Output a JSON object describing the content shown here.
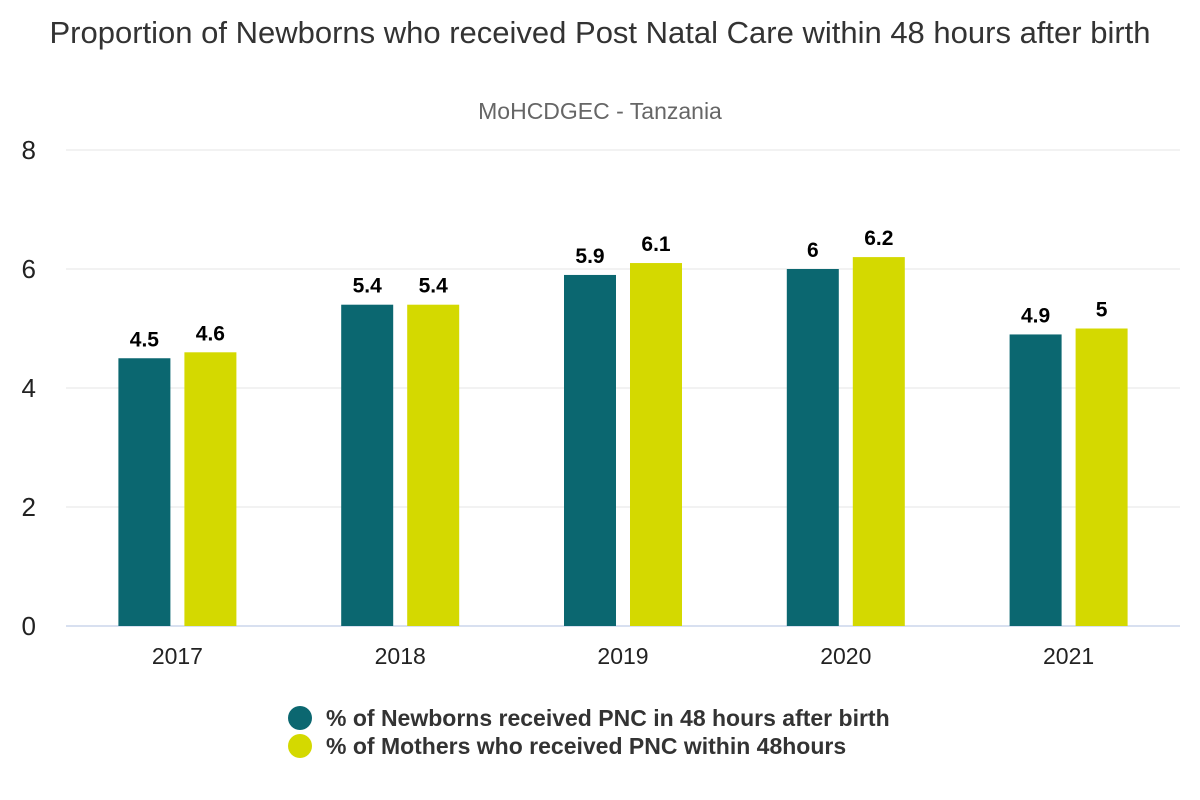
{
  "chart_data": {
    "type": "bar",
    "title": "Proportion of Newborns who received Post Natal Care within 48 hours after birth",
    "subtitle": "MoHCDGEC - Tanzania",
    "xlabel": "",
    "ylabel": "",
    "categories": [
      "2017",
      "2018",
      "2019",
      "2020",
      "2021"
    ],
    "ylim": [
      0,
      8
    ],
    "yticks": [
      0,
      2,
      4,
      6,
      8
    ],
    "grid": true,
    "legend_position": "bottom",
    "series": [
      {
        "name": "% of Newborns received PNC in 48 hours after birth",
        "color": "#0b6770",
        "values": [
          4.5,
          5.4,
          5.9,
          6,
          4.9
        ]
      },
      {
        "name": "% of Mothers who received PNC within 48hours",
        "color": "#d4d900",
        "values": [
          4.6,
          5.4,
          6.1,
          6.2,
          5
        ]
      }
    ]
  }
}
